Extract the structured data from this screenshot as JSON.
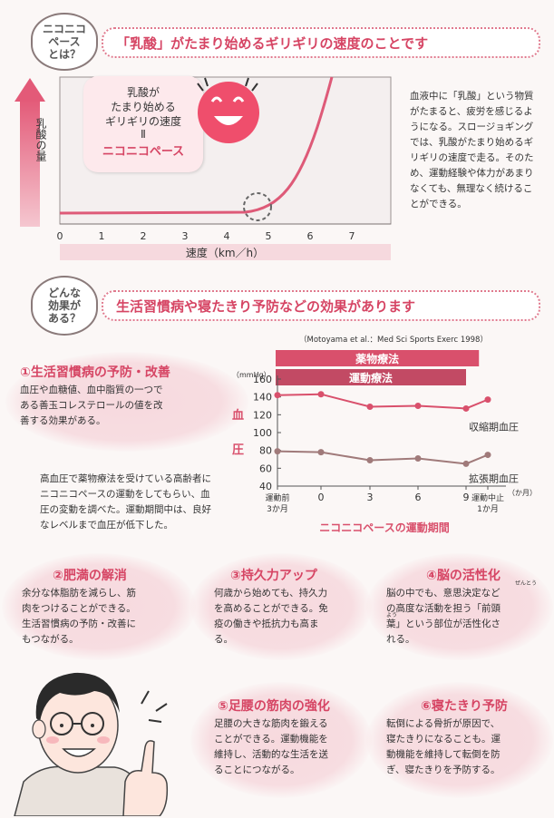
{
  "section1": {
    "label": "ニコニコ\nペース\nとは？",
    "banner": "「乳酸」がたまり始めるギリギリの速度のことです",
    "graph": {
      "ylabel": "乳酸の量",
      "xlabel": "速度（km／h）",
      "ticks": [
        "0",
        "1",
        "2",
        "3",
        "4",
        "5",
        "6",
        "7"
      ],
      "callout_line1": "乳酸が\nたまり始める\nギリギリの速度",
      "callout_equals": "Ⅱ",
      "callout_highlight": "ニコニコペース"
    },
    "description": "血液中に「乳酸」という物質\nがたまると、疲労を感じるよ\nうになる。スロージョギング\nでは、乳酸がたまり始めるギ\nリギリの速度で走る。そのた\nめ、運動経験や体力があまり\nなくても、無理なく続けるこ\nとができる。"
  },
  "section2": {
    "label": "どんな\n効果が\nある？",
    "banner": "生活習慣病や寝たきり予防などの効果があります",
    "citation": "（Motoyama et al.：Med Sci Sports Exerc 1998）",
    "item1": {
      "title": "①生活習慣病の予防・改善",
      "body": "血圧や血糖値、血中脂質の一つで\nある善玉コレステロールの値を改\n善する効果がある。"
    },
    "study_note": "高血圧で薬物療法を受けている高齢者に\nニコニコペースの運動をしてもらい、血\n圧の変動を調べた。運動期間中は、良好\nなレベルまで血圧が低下した。",
    "item2": {
      "title": "②肥満の解消",
      "body": "余分な体脂肪を減らし、筋\n肉をつけることができる。\n生活習慣病の予防・改善に\nもつながる。"
    },
    "item3": {
      "title": "③持久力アップ",
      "body": "何歳から始めても、持久力\nを高めることができる。免\n疫の働きや抵抗力も高ま\nる。"
    },
    "item4": {
      "title": "④脳の活性化",
      "body": "脳の中でも、意思決定など\nの高度な活動を担う「前頭\n葉」という部位が活性化さ\nれる。",
      "ruby": "ぜんとう",
      "ruby2": "よう"
    },
    "item5": {
      "title": "⑤足腰の筋肉の強化",
      "body": "足腰の大きな筋肉を鍛える\nことができる。運動機能を\n維持し、活動的な生活を送\nることにつながる。"
    },
    "item6": {
      "title": "⑥寝たきり予防",
      "body": "転倒による骨折が原因で、\n寝たきりになることも。運\n動機能を維持して転倒を防\nぎ、寝たきりを予防する。"
    }
  },
  "chart_data": {
    "type": "line",
    "title": "",
    "unit_label": "（mmHg）",
    "ylabel": "血圧",
    "xlabel": "ニコニコペースの運動期間",
    "x_unit": "（か月）",
    "ylim": [
      40,
      160
    ],
    "yticks": [
      40,
      60,
      80,
      100,
      120,
      140,
      160
    ],
    "categories": [
      "運動前\n3か月",
      "0",
      "3",
      "6",
      "9",
      "運動中止\n1か月"
    ],
    "series": [
      {
        "name": "収縮期血圧",
        "values": [
          142,
          143,
          129,
          130,
          127,
          137
        ]
      },
      {
        "name": "拡張期血圧",
        "values": [
          79,
          78,
          69,
          71,
          65,
          75
        ]
      }
    ],
    "bands": [
      {
        "label": "薬物療法",
        "from": 0,
        "to": 9.8
      },
      {
        "label": "運動療法",
        "from": 0,
        "to": 9
      }
    ],
    "colors": {
      "line": "#d9506c",
      "band1": "#d9506c",
      "band2": "#c24a64"
    }
  }
}
